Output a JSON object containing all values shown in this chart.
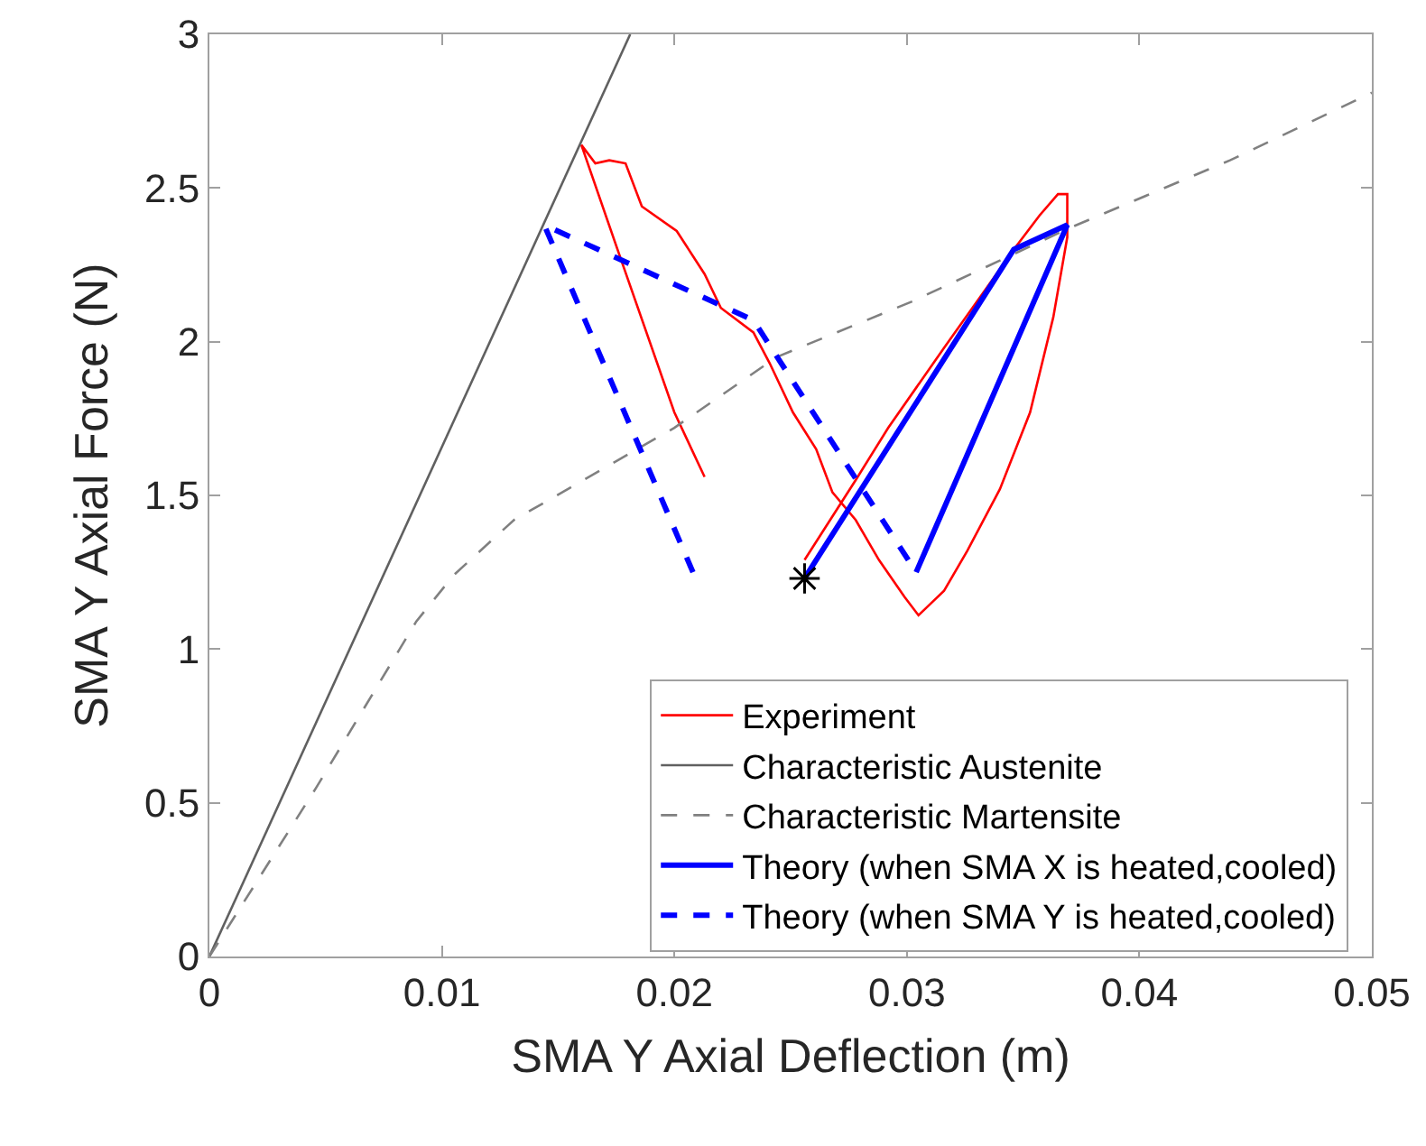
{
  "chart_data": {
    "type": "line",
    "xlabel": "SMA Y Axial Deflection (m)",
    "ylabel": "SMA Y Axial Force (N)",
    "xlim": [
      0,
      0.05
    ],
    "ylim": [
      0,
      3
    ],
    "xticks": [
      0,
      0.01,
      0.02,
      0.03,
      0.04,
      0.05
    ],
    "yticks": [
      0,
      0.5,
      1,
      1.5,
      2,
      2.5,
      3
    ],
    "grid": false,
    "legend": "bottom right",
    "series": [
      {
        "name": "Experiment",
        "color": "#ff0000",
        "line_style": "solid",
        "x": [
          0.0213,
          0.02,
          0.0176,
          0.016,
          0.0166,
          0.0172,
          0.0179,
          0.0186,
          0.0201,
          0.0213,
          0.022,
          0.0234,
          0.0241,
          0.0251,
          0.0261,
          0.0268,
          0.0278,
          0.0288,
          0.0299,
          0.0305,
          0.0316,
          0.0326,
          0.034,
          0.0353,
          0.0363,
          0.0369,
          0.0369,
          0.0365,
          0.0357,
          0.0347,
          0.0316,
          0.0292,
          0.0278,
          0.0256
        ],
        "values": [
          1.56,
          1.77,
          2.29,
          2.64,
          2.58,
          2.59,
          2.58,
          2.44,
          2.36,
          2.22,
          2.11,
          2.03,
          1.93,
          1.77,
          1.65,
          1.51,
          1.42,
          1.29,
          1.17,
          1.11,
          1.19,
          1.32,
          1.52,
          1.77,
          2.08,
          2.34,
          2.48,
          2.48,
          2.41,
          2.31,
          1.98,
          1.72,
          1.55,
          1.29
        ]
      },
      {
        "name": "Characteristic Austenite",
        "color": "#606060",
        "line_style": "solid",
        "x": [
          0,
          0.0181
        ],
        "values": [
          0,
          3
        ]
      },
      {
        "name": "Characteristic Martensite",
        "color": "#808080",
        "line_style": "dashed",
        "x": [
          0,
          0.0046,
          0.0089,
          0.0105,
          0.0131,
          0.02,
          0.0244,
          0.0302,
          0.037,
          0.0439,
          0.05
        ],
        "values": [
          0,
          0.55,
          1.09,
          1.24,
          1.42,
          1.72,
          1.95,
          2.13,
          2.37,
          2.59,
          2.81
        ]
      },
      {
        "name": "Theory (when SMA X is heated,cooled)",
        "color": "#0000ff",
        "line_style": "solid",
        "x": [
          0.0256,
          0.0346,
          0.0369,
          0.0304
        ],
        "values": [
          1.23,
          2.3,
          2.38,
          1.25
        ]
      },
      {
        "name": "Theory (when SMA Y is heated,cooled)",
        "color": "#0000ff",
        "line_style": "dashed",
        "x": [
          0.0208,
          0.0144,
          0.0234,
          0.0304
        ],
        "values": [
          1.25,
          2.38,
          2.07,
          1.25
        ]
      },
      {
        "type": "scatter",
        "color": "#000000",
        "marker": "cross",
        "x": [
          0.0256
        ],
        "values": [
          1.23
        ]
      }
    ]
  }
}
